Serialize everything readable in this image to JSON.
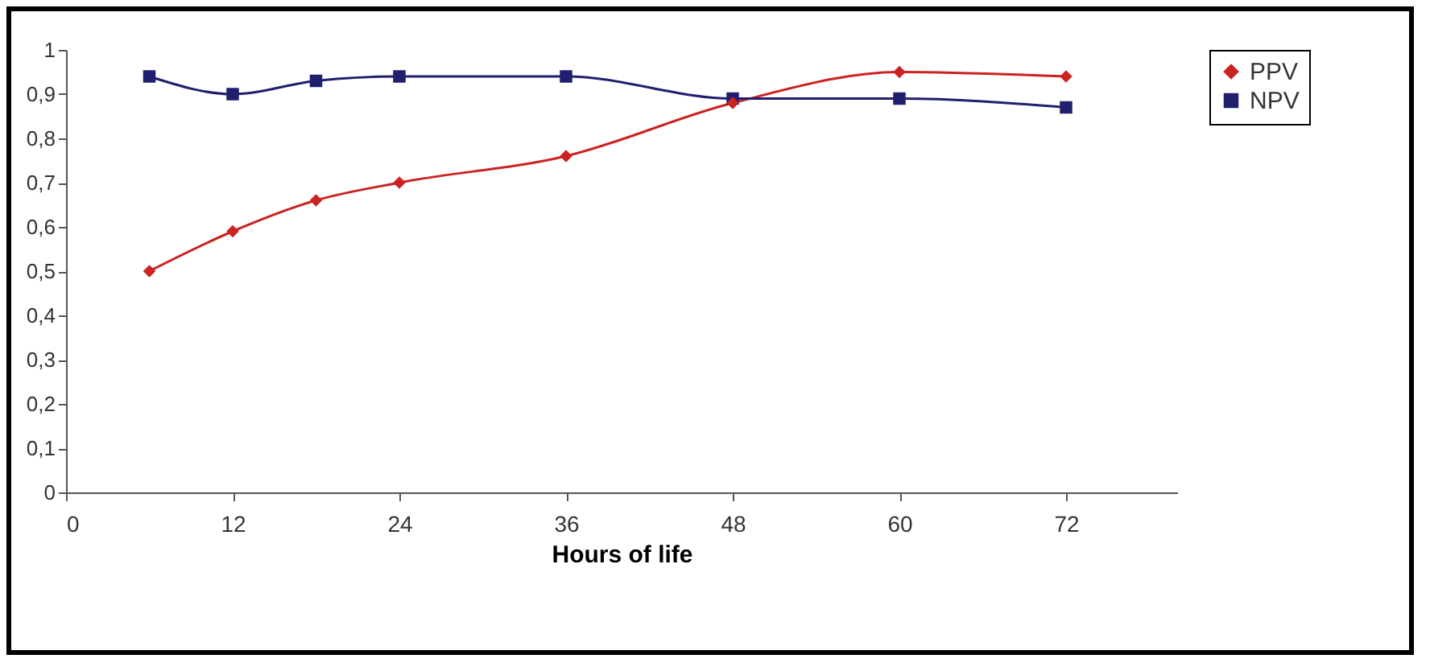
{
  "chart_data": {
    "type": "line",
    "xlabel": "Hours of life",
    "x": [
      6,
      12,
      18,
      24,
      36,
      48,
      60,
      72
    ],
    "series": [
      {
        "name": "PPV",
        "color": "#cc2222",
        "marker": "diamond",
        "values": [
          0.5,
          0.59,
          0.66,
          0.7,
          0.76,
          0.88,
          0.95,
          0.94
        ]
      },
      {
        "name": "NPV",
        "color": "#1f1f6e",
        "marker": "square",
        "values": [
          0.94,
          0.9,
          0.93,
          0.94,
          0.94,
          0.89,
          0.89,
          0.87
        ]
      }
    ],
    "xlim": [
      0,
      80
    ],
    "xticks": [
      0,
      12,
      24,
      36,
      48,
      60,
      72
    ],
    "ylim": [
      0,
      1
    ],
    "yticks": [
      {
        "value": 0,
        "label": "0"
      },
      {
        "value": 0.1,
        "label": "0,1"
      },
      {
        "value": 0.2,
        "label": "0,2"
      },
      {
        "value": 0.3,
        "label": "0,3"
      },
      {
        "value": 0.4,
        "label": "0,4"
      },
      {
        "value": 0.5,
        "label": "0,5"
      },
      {
        "value": 0.6,
        "label": "0,6"
      },
      {
        "value": 0.7,
        "label": "0,7"
      },
      {
        "value": 0.8,
        "label": "0,8"
      },
      {
        "value": 0.9,
        "label": "0,9"
      },
      {
        "value": 1,
        "label": "1"
      }
    ],
    "grid": false,
    "legend": "right",
    "line_style": "solid"
  }
}
